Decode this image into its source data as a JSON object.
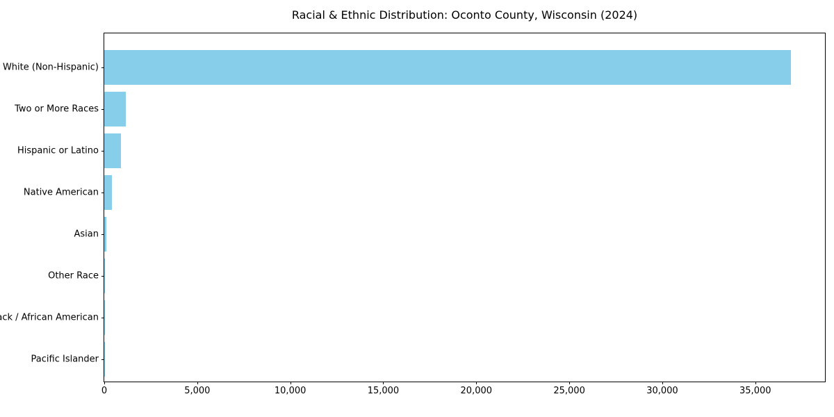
{
  "chart_data": {
    "type": "bar",
    "orientation": "horizontal",
    "title": "Racial & Ethnic Distribution: Oconto County, Wisconsin (2024)",
    "categories": [
      "White (Non-Hispanic)",
      "Two or More Races",
      "Hispanic or Latino",
      "Native American",
      "Asian",
      "Other Race",
      "Black / African American",
      "Pacific Islander"
    ],
    "values": [
      36900,
      1150,
      900,
      410,
      100,
      40,
      35,
      10
    ],
    "xlabel": "",
    "ylabel": "",
    "xlim": [
      0,
      38745
    ],
    "xtick_values": [
      0,
      5000,
      10000,
      15000,
      20000,
      25000,
      30000,
      35000
    ],
    "xtick_labels": [
      "0",
      "5,000",
      "10,000",
      "15,000",
      "20,000",
      "25,000",
      "30,000",
      "35,000"
    ],
    "bar_color": "#87CEEB",
    "grid": false,
    "legend_position": "none"
  }
}
